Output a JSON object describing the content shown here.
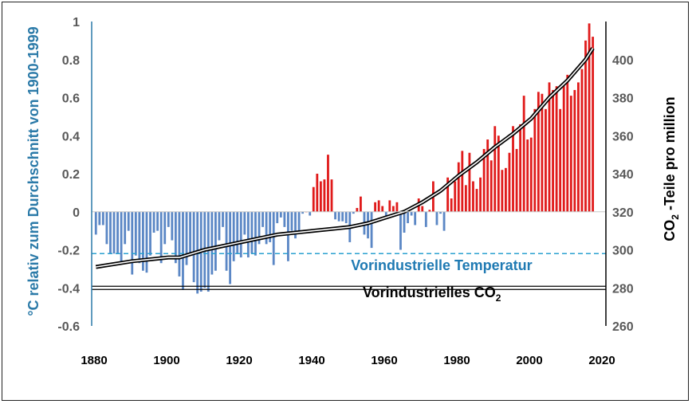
{
  "chart_data": {
    "type": "bar",
    "x_ticks": [
      "1880",
      "1900",
      "1920",
      "1940",
      "1960",
      "1980",
      "2000",
      "2020"
    ],
    "xlim": [
      1880,
      2020
    ],
    "ylabel_left": "°C relativ zum Durchschnitt von 1900-1999",
    "ylim_left": [
      -0.6,
      1.0
    ],
    "yticks_left": [
      "1",
      "0.8",
      "0.6",
      "0.4",
      "0.2",
      "0",
      "-0.2",
      "-0.4",
      "-0.6"
    ],
    "ylabel_right_pre": "CO",
    "ylabel_right_sub": "2",
    "ylabel_right_post": " -Teile pro million",
    "ylim_right": [
      260,
      420
    ],
    "yticks_right": [
      "400",
      "380",
      "360",
      "340",
      "320",
      "300",
      "280",
      "260"
    ],
    "colors": {
      "positive": "#e01b1b",
      "negative": "#5b87c5",
      "co2_line": "#000000",
      "pre_temp_line": "#2aa0d0"
    },
    "temperature_anomaly": {
      "years": [
        1880,
        1881,
        1882,
        1883,
        1884,
        1885,
        1886,
        1887,
        1888,
        1889,
        1890,
        1891,
        1892,
        1893,
        1894,
        1895,
        1896,
        1897,
        1898,
        1899,
        1900,
        1901,
        1902,
        1903,
        1904,
        1905,
        1906,
        1907,
        1908,
        1909,
        1910,
        1911,
        1912,
        1913,
        1914,
        1915,
        1916,
        1917,
        1918,
        1919,
        1920,
        1921,
        1922,
        1923,
        1924,
        1925,
        1926,
        1927,
        1928,
        1929,
        1930,
        1931,
        1932,
        1933,
        1934,
        1935,
        1936,
        1937,
        1938,
        1939,
        1940,
        1941,
        1942,
        1943,
        1944,
        1945,
        1946,
        1947,
        1948,
        1949,
        1950,
        1951,
        1952,
        1953,
        1954,
        1955,
        1956,
        1957,
        1958,
        1959,
        1960,
        1961,
        1962,
        1963,
        1964,
        1965,
        1966,
        1967,
        1968,
        1969,
        1970,
        1971,
        1972,
        1973,
        1974,
        1975,
        1976,
        1977,
        1978,
        1979,
        1980,
        1981,
        1982,
        1983,
        1984,
        1985,
        1986,
        1987,
        1988,
        1989,
        1990,
        1991,
        1992,
        1993,
        1994,
        1995,
        1996,
        1997,
        1998,
        1999,
        2000,
        2001,
        2002,
        2003,
        2004,
        2005,
        2006,
        2007,
        2008,
        2009,
        2010,
        2011,
        2012,
        2013,
        2014,
        2015,
        2016,
        2017
      ],
      "values": [
        -0.12,
        -0.07,
        -0.07,
        -0.17,
        -0.22,
        -0.22,
        -0.22,
        -0.27,
        -0.17,
        -0.1,
        -0.33,
        -0.23,
        -0.27,
        -0.31,
        -0.32,
        -0.23,
        -0.11,
        -0.1,
        -0.27,
        -0.17,
        -0.08,
        -0.15,
        -0.27,
        -0.34,
        -0.41,
        -0.28,
        -0.22,
        -0.37,
        -0.43,
        -0.42,
        -0.4,
        -0.42,
        -0.33,
        -0.31,
        -0.15,
        -0.08,
        -0.31,
        -0.38,
        -0.26,
        -0.22,
        -0.24,
        -0.12,
        -0.24,
        -0.22,
        -0.23,
        -0.17,
        -0.08,
        -0.17,
        -0.16,
        -0.28,
        -0.06,
        -0.03,
        -0.08,
        -0.26,
        -0.1,
        -0.14,
        -0.1,
        -0.01,
        0.0,
        -0.02,
        0.13,
        0.2,
        0.16,
        0.17,
        0.3,
        0.17,
        -0.04,
        -0.05,
        -0.05,
        -0.06,
        -0.16,
        -0.01,
        0.02,
        0.08,
        -0.12,
        -0.14,
        -0.19,
        0.05,
        0.06,
        0.03,
        -0.03,
        0.06,
        0.03,
        0.05,
        -0.2,
        -0.11,
        -0.06,
        -0.02,
        -0.07,
        0.07,
        0.03,
        -0.08,
        0.01,
        0.16,
        -0.07,
        -0.01,
        -0.1,
        0.18,
        0.07,
        0.16,
        0.26,
        0.32,
        0.14,
        0.31,
        0.16,
        0.12,
        0.18,
        0.33,
        0.38,
        0.27,
        0.45,
        0.4,
        0.22,
        0.23,
        0.31,
        0.45,
        0.33,
        0.46,
        0.61,
        0.38,
        0.39,
        0.54,
        0.63,
        0.62,
        0.54,
        0.68,
        0.64,
        0.66,
        0.54,
        0.66,
        0.72,
        0.61,
        0.64,
        0.68,
        0.75,
        0.9,
        0.99,
        0.92
      ]
    },
    "co2_ppm": {
      "years": [
        1880,
        1890,
        1900,
        1903,
        1910,
        1920,
        1930,
        1940,
        1950,
        1955,
        1960,
        1965,
        1970,
        1975,
        1980,
        1985,
        1990,
        1995,
        2000,
        2005,
        2010,
        2015,
        2017
      ],
      "values": [
        291,
        294,
        296,
        296,
        300,
        304,
        308,
        310,
        312,
        314,
        317,
        320,
        325,
        331,
        339,
        346,
        354,
        361,
        369,
        380,
        389,
        400,
        406
      ]
    },
    "annotations": {
      "preindustrial_temp_label": "Vorindustrielle Temperatur",
      "preindustrial_temp_value": -0.22,
      "preindustrial_co2_label_pre": "Vorindustrielles CO",
      "preindustrial_co2_label_sub": "2",
      "preindustrial_co2_value": 280
    }
  }
}
